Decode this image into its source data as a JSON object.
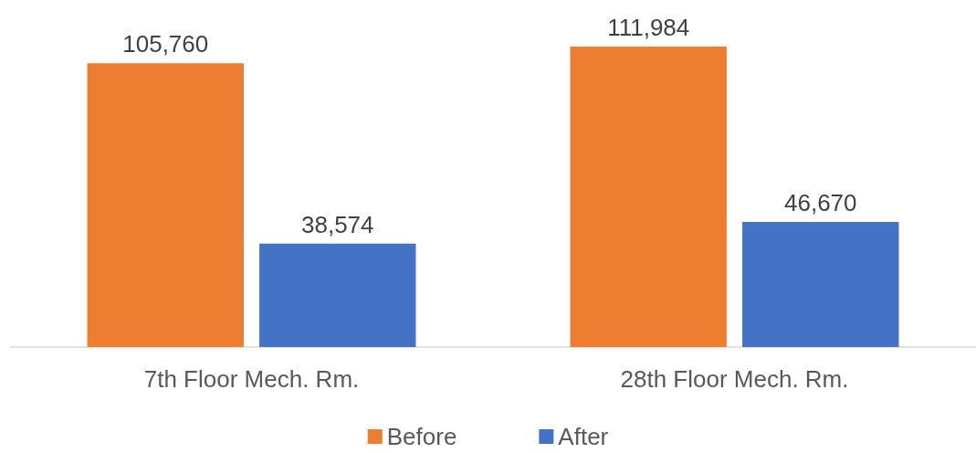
{
  "chart_data": {
    "type": "bar",
    "categories": [
      "7th Floor Mech. Rm.",
      "28th Floor Mech. Rm."
    ],
    "series": [
      {
        "name": "Before",
        "color": "#ed7d31",
        "values": [
          105760,
          111984
        ],
        "value_labels": [
          "105,760",
          "111,984"
        ]
      },
      {
        "name": "After",
        "color": "#4472c4",
        "values": [
          38574,
          46670
        ],
        "value_labels": [
          "38,574",
          "46,670"
        ]
      }
    ],
    "legend": "bottom",
    "grid": false
  }
}
